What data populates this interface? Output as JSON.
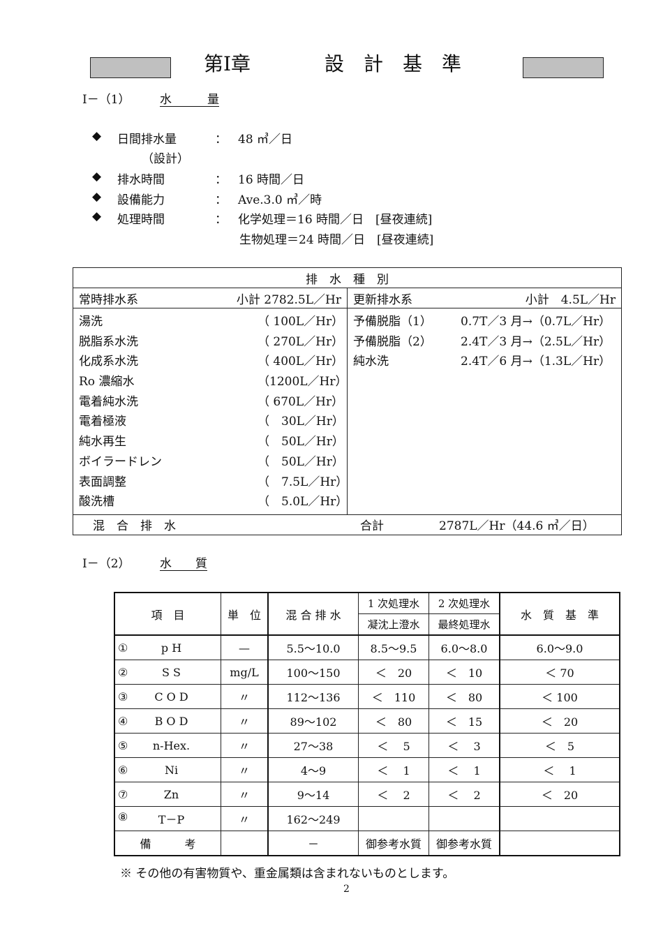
{
  "header": {
    "chapter": "第Ⅰ章",
    "title": "設　計　基　準"
  },
  "sec1": {
    "num": "Ⅰ－（1）",
    "title": "水　　　量"
  },
  "bullets": [
    {
      "label": "日間排水量",
      "sub": "（設計）",
      "value": "48 ㎥／日"
    },
    {
      "label": "排水時間",
      "value": "16 時間／日"
    },
    {
      "label": "設備能力",
      "value": "Ave.3.0 ㎥／時"
    },
    {
      "label": "処理時間",
      "value": "化学処理＝16 時間／日　[昼夜連続]",
      "value2": "生物処理＝24 時間／日　[昼夜連続]"
    }
  ],
  "colon": "：",
  "t1": {
    "header": "排　水　種　別",
    "left_title": "常時排水系",
    "left_sub": "小計 2782.5L／Hr",
    "right_title": "更新排水系",
    "right_sub": "小計　4.5L／Hr",
    "left": [
      [
        "湯洗",
        "（ 100L／Hr）"
      ],
      [
        "脱脂系水洗",
        "（ 270L／Hr）"
      ],
      [
        "化成系水洗",
        "（ 400L／Hr）"
      ],
      [
        "Ro 濃縮水",
        "（1200L／Hr）"
      ],
      [
        "電着純水洗",
        "（ 670L／Hr）"
      ],
      [
        "電着極液",
        "（　30L／Hr）"
      ],
      [
        "純水再生",
        "（　50L／Hr）"
      ],
      [
        "ボイラードレン",
        "（　50L／Hr）"
      ],
      [
        "表面調整",
        "（　7.5L／Hr）"
      ],
      [
        "酸洗槽",
        "（　5.0L／Hr）"
      ]
    ],
    "right": [
      [
        "予備脱脂（1）",
        "0.7T／3 月→（0.7L／Hr）"
      ],
      [
        "予備脱脂（2）",
        "2.4T／3 月→（2.5L／Hr）"
      ],
      [
        "純水洗",
        "2.4T／6 月→（1.3L／Hr）"
      ]
    ],
    "footer_left": "混　合　排　水",
    "footer_total_label": "合計",
    "footer_total": "2787L／Hr（44.6 ㎥／日）"
  },
  "sec2": {
    "num": "Ⅰ－（2）",
    "title": "水　　質"
  },
  "t2": {
    "h_item": "項　目",
    "h_unit": "単　位",
    "h_mix": "混 合 排 水",
    "h_p1": "1 次処理水",
    "h_p1b": "凝沈上澄水",
    "h_p2": "2 次処理水",
    "h_p2b": "最終処理水",
    "h_std": "水　質　基　準",
    "rows": [
      [
        "①",
        "p H",
        "—",
        "5.5～10.0",
        "8.5～9.5",
        "6.0～8.0",
        "6.0～9.0"
      ],
      [
        "②",
        "S S",
        "mg/L",
        "100～150",
        "＜　20",
        "＜　10",
        "＜ 70"
      ],
      [
        "③",
        "C O D",
        "〃",
        "112～136",
        "＜　110",
        "＜　80",
        "＜ 100"
      ],
      [
        "④",
        "B O D",
        "〃",
        "89～102",
        "＜　80",
        "＜　15",
        "＜　20"
      ],
      [
        "⑤",
        "n-Hex.",
        "〃",
        "27～38",
        "＜　 5",
        "＜　 3",
        "＜　5"
      ],
      [
        "⑥",
        "Ni",
        "〃",
        "4～9",
        "＜　 1",
        "＜　 1",
        "＜　 1"
      ],
      [
        "⑦",
        "Zn",
        "〃",
        "9～14",
        "＜　 2",
        "＜　 2",
        "＜　20"
      ],
      [
        "⑧",
        "T－P",
        "〃",
        "162～249",
        "",
        "",
        ""
      ]
    ],
    "remark": "備　　　考",
    "remark_mix": "－",
    "remark_p1": "御参考水質",
    "remark_p2": "御参考水質"
  },
  "note": "※ その他の有害物質や、重金属類は含まれないものとします。",
  "page_number": "2"
}
